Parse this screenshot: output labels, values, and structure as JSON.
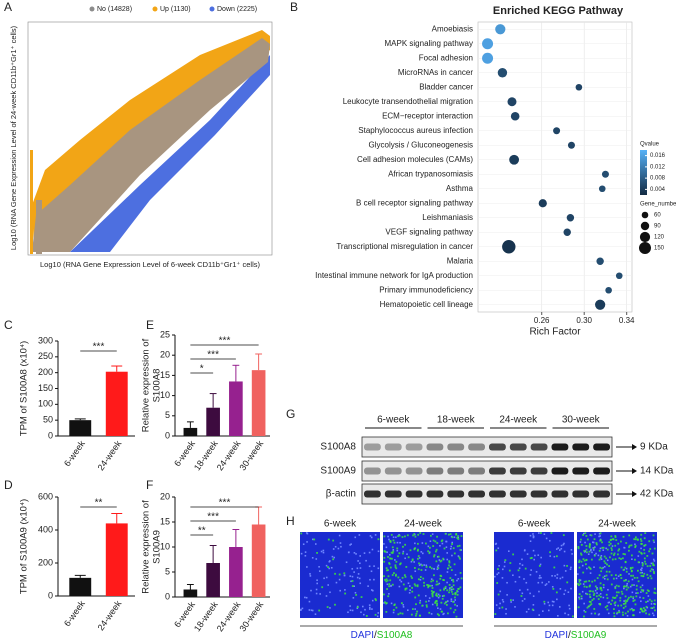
{
  "panel_labels": [
    "A",
    "B",
    "C",
    "D",
    "E",
    "F",
    "G",
    "H"
  ],
  "panel_a": {
    "legend": [
      {
        "name": "No (14828)",
        "color": "#8c8c8c"
      },
      {
        "name": "Up (1130)",
        "color": "#f2a516"
      },
      {
        "name": "Down (2225)",
        "color": "#4d6fe0"
      }
    ],
    "x_label": "Log10 (RNA Gene Expression Level of 6-week CD11b⁺Gr1⁺ cells)",
    "y_label": "Log10 (RNA Gene Expression Level of 24-week CD11b⁺Gr1⁺ cells)"
  },
  "chart_data": [
    {
      "type": "dot",
      "title": "Enriched KEGG Pathway",
      "x_label": "Rich Factor",
      "categories": [
        "Amoebiasis",
        "MAPK signaling pathway",
        "Focal adhesion",
        "MicroRNAs in cancer",
        "Bladder cancer",
        "Leukocyte transendothelial migration",
        "ECM−receptor interaction",
        "Staphylococcus aureus infection",
        "Glycolysis / Gluconeogenesis",
        "Cell adhesion molecules (CAMs)",
        "African trypanosomiasis",
        "Asthma",
        "B cell receptor signaling pathway",
        "Leishmaniasis",
        "VEGF signaling pathway",
        "Transcriptional misregulation in cancer",
        "Malaria",
        "Intestinal immune network for IgA production",
        "Primary immunodeficiency",
        "Hematopoietic cell lineage"
      ],
      "values": [
        0.221,
        0.209,
        0.209,
        0.223,
        0.295,
        0.232,
        0.235,
        0.274,
        0.288,
        0.234,
        0.32,
        0.317,
        0.261,
        0.287,
        0.284,
        0.229,
        0.315,
        0.333,
        0.323,
        0.315
      ],
      "sizes": [
        90,
        100,
        100,
        80,
        45,
        75,
        70,
        50,
        50,
        85,
        50,
        45,
        65,
        55,
        55,
        130,
        55,
        45,
        45,
        90
      ],
      "qvalues": [
        0.015,
        0.016,
        0.016,
        0.006,
        0.005,
        0.005,
        0.005,
        0.005,
        0.005,
        0.004,
        0.006,
        0.006,
        0.004,
        0.005,
        0.005,
        0.003,
        0.006,
        0.006,
        0.006,
        0.004
      ],
      "xlim": [
        0.2,
        0.345
      ],
      "xticks": [
        0.26,
        {
          "value": 0.3,
          "label": "0.30"
        },
        0.34
      ],
      "grid": true,
      "color_legend": {
        "title": "Qvalue",
        "ticks": [
          0.016,
          0.012,
          0.008,
          0.004
        ],
        "clim": [
          0.002,
          0.018
        ],
        "colors": [
          "#132b43",
          "#56b1f7"
        ]
      },
      "size_legend": {
        "title": "Gene_number",
        "ticks": [
          60,
          90,
          120,
          150
        ]
      }
    },
    {
      "type": "bar",
      "y_label": [
        "TPM of S100A8 (x10⁴)"
      ],
      "categories": [
        "6-week",
        "24-week"
      ],
      "values": [
        50,
        203
      ],
      "errors": [
        4,
        18
      ],
      "colors": [
        "#111111",
        "#ff1a1a"
      ],
      "ylim": [
        0,
        300
      ],
      "yticks": [
        0,
        50,
        100,
        150,
        200,
        250,
        300
      ],
      "significance": [
        "***"
      ]
    },
    {
      "type": "bar",
      "y_label": [
        "TPM of S100A9 (x10⁴)"
      ],
      "categories": [
        "6-week",
        "24-week"
      ],
      "values": [
        110,
        440
      ],
      "errors": [
        15,
        60
      ],
      "colors": [
        "#111111",
        "#ff1a1a"
      ],
      "ylim": [
        0,
        600
      ],
      "yticks": [
        0,
        200,
        400,
        600
      ],
      "significance": [
        "**"
      ]
    },
    {
      "type": "bar",
      "y_label": [
        "Relative expression of",
        "S100A8"
      ],
      "categories": [
        "6-week",
        "18-week",
        "24-week",
        "30-week"
      ],
      "values": [
        2,
        7,
        13.5,
        16.3
      ],
      "errors": [
        1.5,
        3.5,
        4,
        4
      ],
      "colors": [
        "#111111",
        "#3d0b3f",
        "#96218f",
        "#f0625f"
      ],
      "ylim": [
        0,
        25
      ],
      "yticks": [
        0,
        5,
        10,
        15,
        20,
        25
      ],
      "significance": [
        "*",
        "***",
        "***"
      ]
    },
    {
      "type": "bar",
      "y_label": [
        "Relative expression of",
        "S100A9"
      ],
      "categories": [
        "6-week",
        "18-week",
        "24-week",
        "30-week"
      ],
      "values": [
        1.5,
        6.8,
        10,
        14.5
      ],
      "errors": [
        1,
        3.5,
        3.5,
        3.5
      ],
      "colors": [
        "#111111",
        "#3d0b3f",
        "#96218f",
        "#f0625f"
      ],
      "ylim": [
        0,
        20
      ],
      "yticks": [
        0,
        5,
        10,
        15,
        20
      ],
      "significance": [
        "**",
        "***",
        "***"
      ]
    }
  ],
  "panel_g": {
    "groups": [
      "6-week",
      "18-week",
      "24-week",
      "30-week"
    ],
    "rows": [
      {
        "name": "S100A8",
        "size": "9 KDa"
      },
      {
        "name": "S100A9",
        "size": "14 KDa"
      },
      {
        "name": "β-actin",
        "size": "42 KDa"
      }
    ]
  },
  "panel_h": {
    "headers": [
      "6-week",
      "24-week",
      "6-week",
      "24-week"
    ],
    "captions": [
      [
        {
          "text": "DAPI",
          "color": "#2233dd"
        },
        {
          "text": "/",
          "color": "#222222"
        },
        {
          "text": "S100A8",
          "color": "#1fbf1f"
        }
      ],
      [
        {
          "text": "DAPI",
          "color": "#2233dd"
        },
        {
          "text": "/",
          "color": "#222222"
        },
        {
          "text": "S100A9",
          "color": "#1fbf1f"
        }
      ]
    ]
  }
}
